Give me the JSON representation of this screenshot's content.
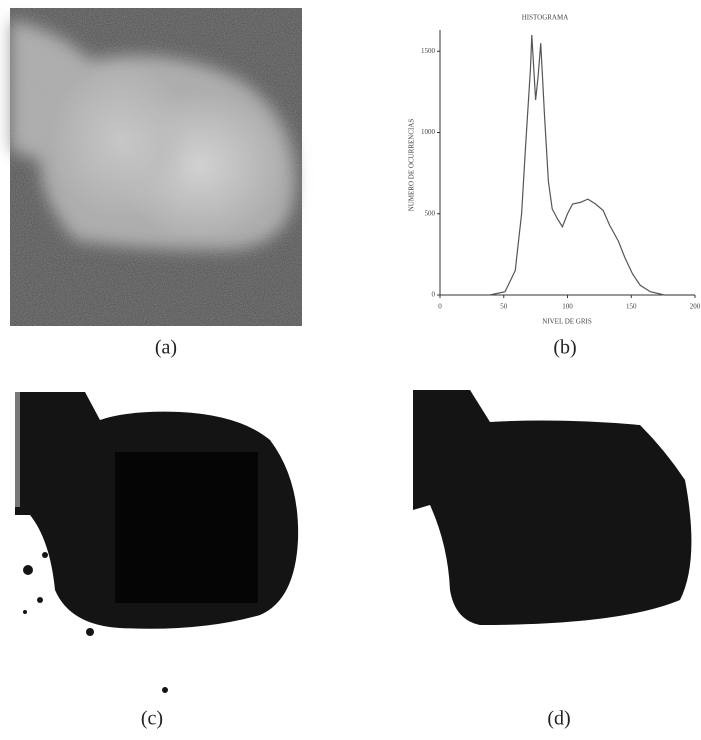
{
  "captions": [
    "(a)",
    "(b)",
    "(c)",
    "(d)"
  ],
  "chart_data": {
    "type": "line",
    "title": "HISTOGRAMA",
    "x_label": "NIVEL DE GRIS",
    "y_label": "NUMERO DE OCURRENCIAS",
    "x": [
      39,
      51,
      59,
      64,
      67,
      71,
      72,
      75,
      77,
      79,
      82,
      85,
      88,
      92,
      96,
      100,
      104,
      110,
      116,
      122,
      128,
      133,
      140,
      145,
      151,
      157,
      165,
      176,
      200
    ],
    "values": [
      0,
      20,
      150,
      500,
      900,
      1400,
      1600,
      1200,
      1350,
      1550,
      1100,
      700,
      530,
      470,
      420,
      500,
      560,
      570,
      590,
      560,
      520,
      430,
      330,
      230,
      130,
      60,
      20,
      0,
      0
    ],
    "color": "#555555",
    "xlim": [
      0,
      200
    ],
    "xticks": [
      0,
      50,
      100,
      150,
      200
    ],
    "ylim": [
      0,
      1600
    ],
    "yticks": [
      0,
      500,
      1000,
      1500
    ]
  }
}
